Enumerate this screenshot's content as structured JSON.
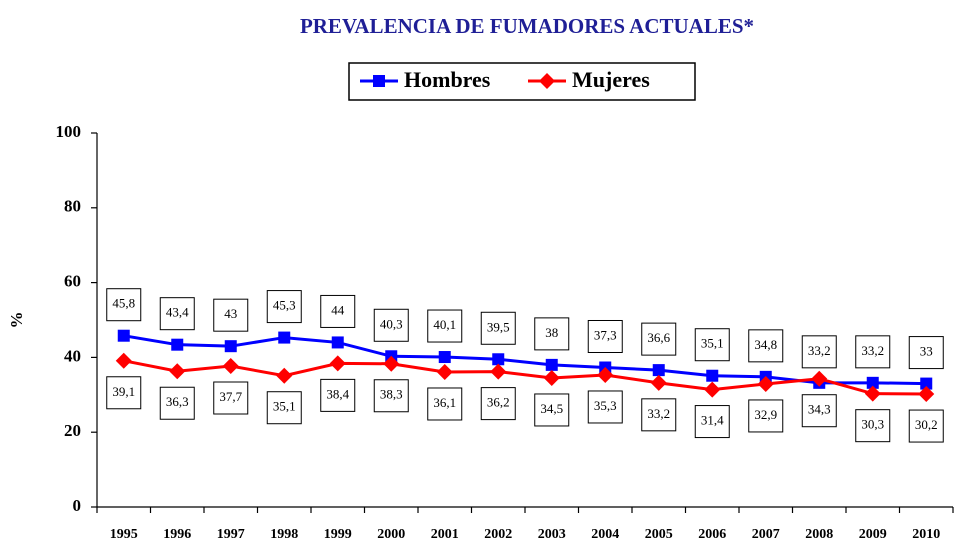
{
  "chart_data": {
    "type": "line",
    "title": "PREVALENCIA DE FUMADORES ACTUALES*",
    "y_label": "%",
    "categories": [
      "1995",
      "1996",
      "1997",
      "1998",
      "1999",
      "2000",
      "2001",
      "2002",
      "2003",
      "2004",
      "2005",
      "2006",
      "2007",
      "2008",
      "2009",
      "2010"
    ],
    "series": [
      {
        "name": "Hombres",
        "color": "#0000ff",
        "marker": "square",
        "values": [
          45.8,
          43.4,
          43,
          45.3,
          44,
          40.3,
          40.1,
          39.5,
          38,
          37.3,
          36.6,
          35.1,
          34.8,
          33.2,
          33.2,
          33
        ],
        "value_labels": [
          "45,8",
          "43,4",
          "43",
          "45,3",
          "44",
          "40,3",
          "40,1",
          "39,5",
          "38",
          "37,3",
          "36,6",
          "35,1",
          "34,8",
          "33,2",
          "33,2",
          "33"
        ],
        "label_position": "above"
      },
      {
        "name": "Mujeres",
        "color": "#ff0000",
        "marker": "diamond",
        "values": [
          39.1,
          36.3,
          37.7,
          35.1,
          38.4,
          38.3,
          36.1,
          36.2,
          34.5,
          35.3,
          33.2,
          31.4,
          32.9,
          34.3,
          30.3,
          30.2
        ],
        "value_labels": [
          "39,1",
          "36,3",
          "37,7",
          "35,1",
          "38,4",
          "38,3",
          "36,1",
          "36,2",
          "34,5",
          "35,3",
          "33,2",
          "31,4",
          "32,9",
          "34,3",
          "30,3",
          "30,2"
        ],
        "label_position": "below"
      }
    ],
    "ylim": [
      0,
      100
    ],
    "yticks": [
      0,
      20,
      40,
      60,
      80,
      100
    ],
    "grid": false,
    "legend": "top"
  }
}
